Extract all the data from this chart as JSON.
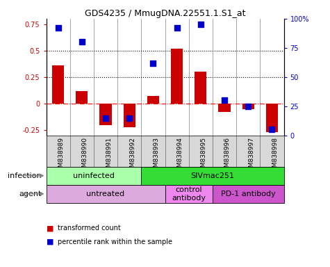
{
  "title": "GDS4235 / MmugDNA.22551.1.S1_at",
  "samples": [
    "GSM838989",
    "GSM838990",
    "GSM838991",
    "GSM838992",
    "GSM838993",
    "GSM838994",
    "GSM838995",
    "GSM838996",
    "GSM838997",
    "GSM838998"
  ],
  "red_values": [
    0.36,
    0.12,
    -0.2,
    -0.22,
    0.07,
    0.52,
    0.3,
    -0.08,
    -0.05,
    -0.27
  ],
  "blue_values": [
    0.92,
    0.8,
    0.15,
    0.15,
    0.62,
    0.92,
    0.95,
    0.3,
    0.25,
    0.05
  ],
  "ylim_left": [
    -0.3,
    0.8
  ],
  "yticks_left": [
    -0.25,
    0.0,
    0.25,
    0.5,
    0.75
  ],
  "ytick_left_labels": [
    "-0.25",
    "0",
    "0.25",
    "0.5",
    "0.75"
  ],
  "ylim_right": [
    0,
    1.0
  ],
  "yticks_right": [
    0.0,
    0.25,
    0.5,
    0.75,
    1.0
  ],
  "ytick_right_labels": [
    "0",
    "25",
    "50",
    "75",
    "100%"
  ],
  "hlines_dotted": [
    0.5,
    0.25
  ],
  "hline_dashed": 0.0,
  "bar_width": 0.5,
  "blue_square_size": 30,
  "infection_groups": [
    {
      "label": "uninfected",
      "start": 0,
      "end": 3,
      "color": "#aaffaa"
    },
    {
      "label": "SIVmac251",
      "start": 4,
      "end": 9,
      "color": "#33dd33"
    }
  ],
  "agent_groups": [
    {
      "label": "untreated",
      "start": 0,
      "end": 4,
      "color": "#ddaadd"
    },
    {
      "label": "control\nantibody",
      "start": 5,
      "end": 6,
      "color": "#ee88ee"
    },
    {
      "label": "PD-1 antibody",
      "start": 7,
      "end": 9,
      "color": "#cc55cc"
    }
  ],
  "infection_label": "infection",
  "agent_label": "agent",
  "legend_red": "transformed count",
  "legend_blue": "percentile rank within the sample",
  "red_color": "#CC0000",
  "blue_color": "#0000CC",
  "gray_bg": "#d8d8d8",
  "plot_bg_color": "#FFFFFF"
}
